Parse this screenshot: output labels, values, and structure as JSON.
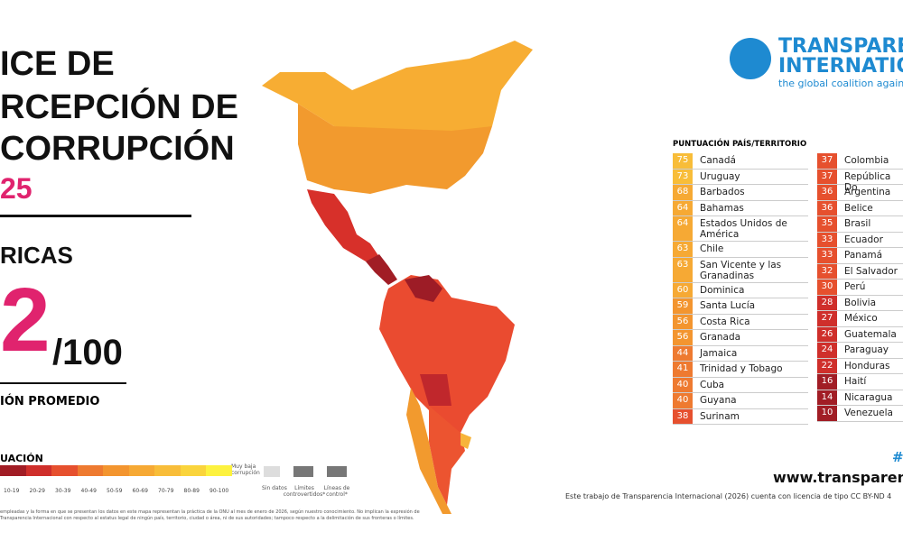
{
  "header": {
    "title_lines": [
      "ICE DE",
      "RCEPCIÓN DE",
      "CORRUPCIÓN"
    ],
    "year": "25",
    "region": "RICAS",
    "score": "2",
    "score_max": "/100",
    "score_caption": "IÓN PROMEDIO"
  },
  "logo": {
    "line1": "TRANSPARE",
    "line2": "INTERNATIO",
    "tagline": "the global coalition against"
  },
  "legend": {
    "title": "UACIÓN",
    "ranges": [
      "10-19",
      "20-29",
      "30-39",
      "40-49",
      "50-59",
      "60-69",
      "70-79",
      "80-89",
      "90-100"
    ],
    "colors": [
      "#a11d25",
      "#cf2f2b",
      "#e6502e",
      "#ee7a30",
      "#f3952f",
      "#f6a934",
      "#f8bd39",
      "#fad43c",
      "#fdf23f"
    ],
    "high_label": "Muy baja corrupción",
    "no_data": "Sin datos",
    "disputed": "Límites controvertidos*",
    "control": "Líneas de control*",
    "note_lines": [
      "empleadas y la forma en que se presentan los datos en este mapa representan la práctica de la ONU al mes de enero de 2026, según nuestro conocimiento. No implican la expresión de",
      "Transparencia Internacional con respecto al estatus legal de ningún país, territorio, ciudad o área, ni de sus autoridades; tampoco respecto a la delimitación de sus fronteras o límites."
    ]
  },
  "table": {
    "header": "PUNTUACIÓN PAÍS/TERRITORIO",
    "columns": [
      [
        [
          75,
          "Canadá"
        ],
        [
          73,
          "Uruguay"
        ],
        [
          68,
          "Barbados"
        ],
        [
          64,
          "Bahamas"
        ],
        [
          64,
          "Estados Unidos de América"
        ],
        [
          63,
          "Chile"
        ],
        [
          63,
          "San Vicente y las Granadinas"
        ],
        [
          60,
          "Dominica"
        ],
        [
          59,
          "Santa Lucía"
        ],
        [
          56,
          "Costa Rica"
        ],
        [
          56,
          "Granada"
        ],
        [
          44,
          "Jamaica"
        ],
        [
          41,
          "Trinidad y Tobago"
        ],
        [
          40,
          "Cuba"
        ],
        [
          40,
          "Guyana"
        ],
        [
          38,
          "Surinam"
        ]
      ],
      [
        [
          37,
          "Colombia"
        ],
        [
          37,
          "República Do"
        ],
        [
          36,
          "Argentina"
        ],
        [
          36,
          "Belice"
        ],
        [
          35,
          "Brasil"
        ],
        [
          33,
          "Ecuador"
        ],
        [
          33,
          "Panamá"
        ],
        [
          32,
          "El Salvador"
        ],
        [
          30,
          "Perú"
        ],
        [
          28,
          "Bolivia"
        ],
        [
          27,
          "México"
        ],
        [
          26,
          "Guatemala"
        ],
        [
          24,
          "Paraguay"
        ],
        [
          22,
          "Honduras"
        ],
        [
          16,
          "Haití"
        ],
        [
          14,
          "Nicaragua"
        ],
        [
          10,
          "Venezuela"
        ]
      ]
    ]
  },
  "footer": {
    "hashtag": "#",
    "url": "www.transparency.",
    "license": "Este trabajo de Transparencia Internacional (2026) cuenta con licencia de tipo CC BY-ND 4"
  }
}
